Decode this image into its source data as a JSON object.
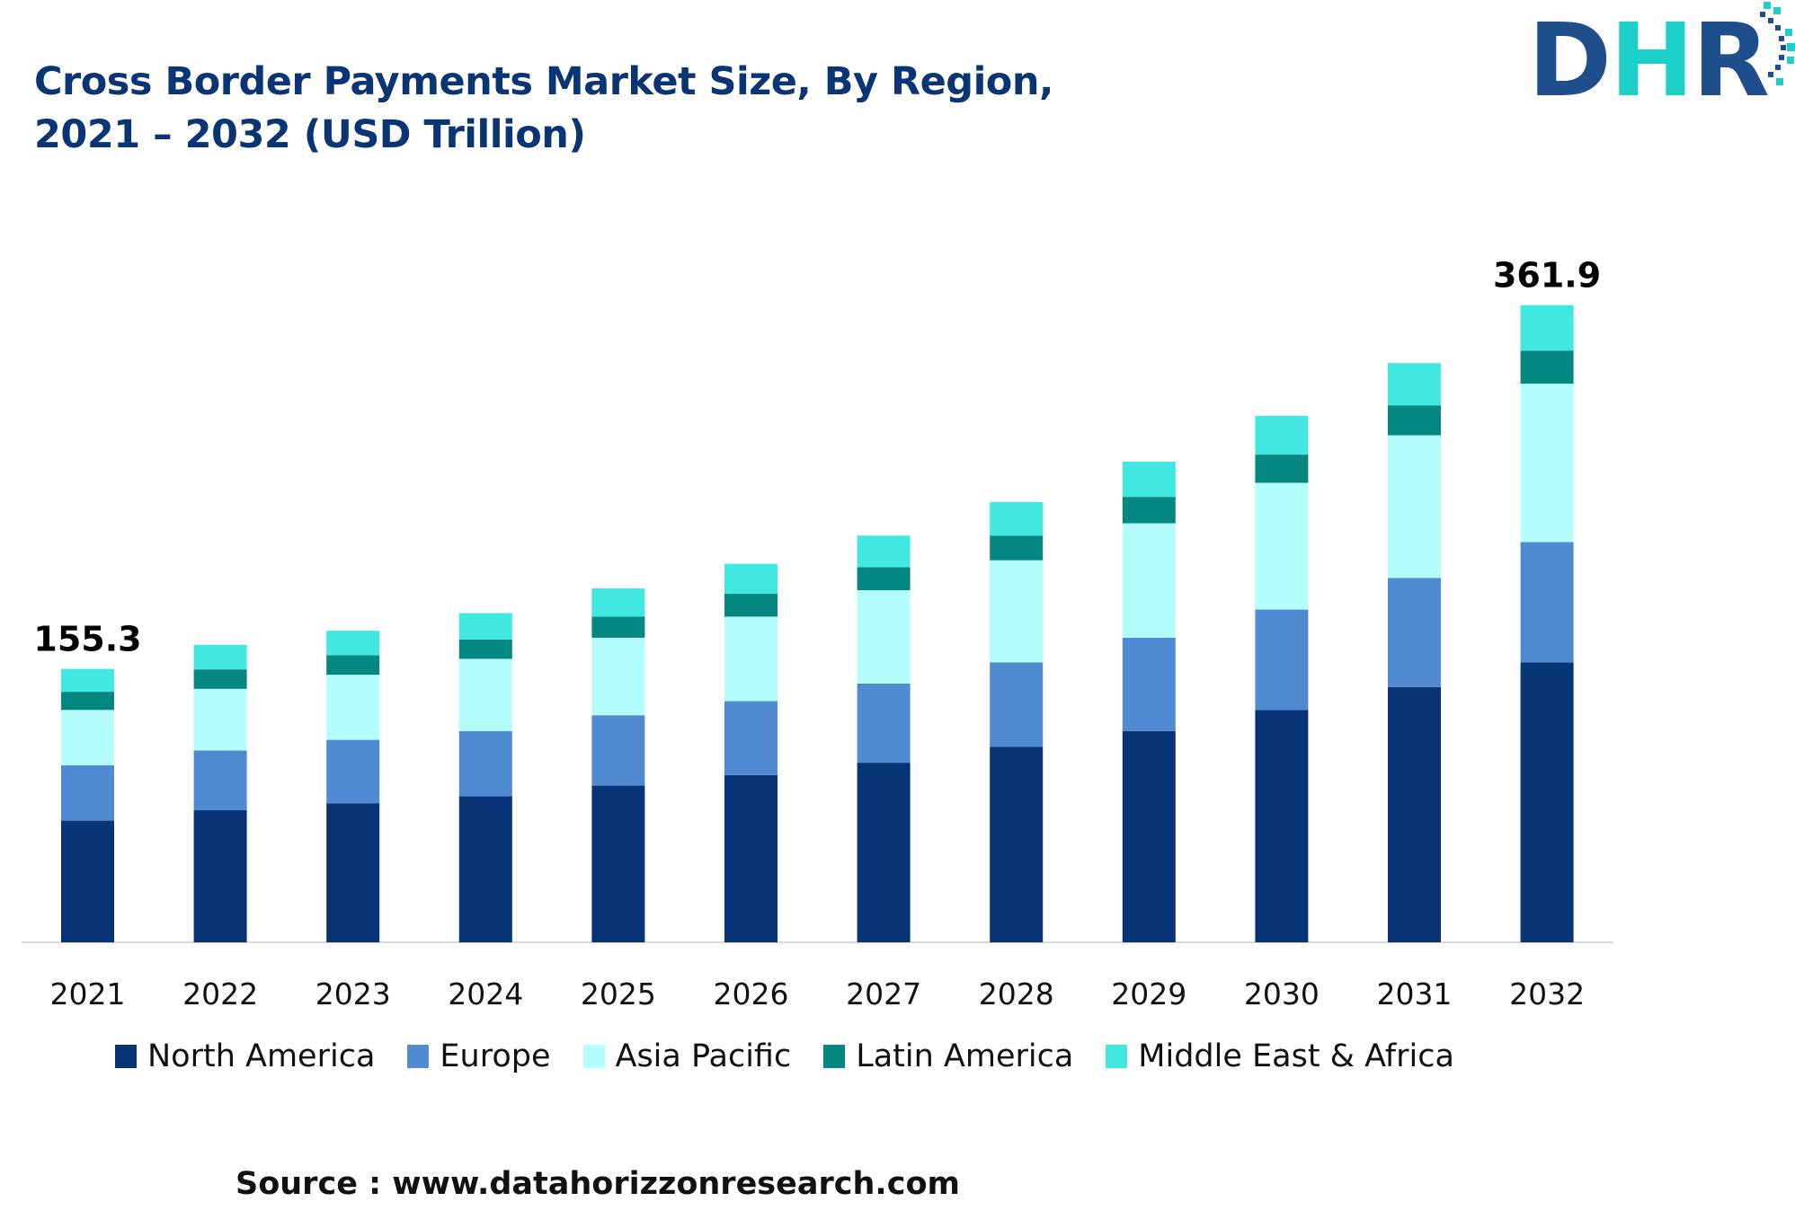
{
  "header": {
    "title_line1": "Cross Border Payments Market Size, By Region,",
    "title_line2": "2021 – 2032 (USD Trillion)",
    "logo_text": "DHR"
  },
  "footer": {
    "source": "Source : www.datahorizzonresearch.com"
  },
  "colors": {
    "title": "#0a3575",
    "north_america": "#073476",
    "europe": "#508ad3",
    "asia_pacific": "#b3fefc",
    "latin_america": "#048781",
    "middle_east_africa": "#40e8e1",
    "logo_dark": "#1f4e8c",
    "logo_teal": "#1ccfc9"
  },
  "chart_data": {
    "type": "bar",
    "stacked": true,
    "title": "Cross Border Payments Market Size, By Region, 2021 – 2032 (USD Trillion)",
    "xlabel": "",
    "ylabel": "USD Trillion",
    "ylim": [
      0,
      380
    ],
    "grid": false,
    "legend_position": "bottom",
    "categories": [
      "2021",
      "2022",
      "2023",
      "2024",
      "2025",
      "2026",
      "2027",
      "2028",
      "2029",
      "2030",
      "2031",
      "2032"
    ],
    "series": [
      {
        "name": "North America",
        "color": "#073476",
        "values": [
          69.1,
          75,
          79,
          83,
          89,
          95,
          102,
          111,
          120,
          132,
          145,
          159.0
        ]
      },
      {
        "name": "Europe",
        "color": "#508ad3",
        "values": [
          31.5,
          34,
          36,
          37,
          40,
          42,
          45,
          48,
          53,
          57,
          62,
          68.3
        ]
      },
      {
        "name": "Asia Pacific",
        "color": "#b3fefc",
        "values": [
          31.4,
          35,
          37,
          41,
          44,
          48,
          53,
          58,
          65,
          72,
          81,
          90.0
        ]
      },
      {
        "name": "Latin America",
        "color": "#048781",
        "values": [
          10.3,
          11,
          11,
          11,
          12,
          13,
          13,
          14,
          15,
          16,
          17,
          18.7
        ]
      },
      {
        "name": "Middle East & Africa",
        "color": "#40e8e1",
        "values": [
          13.0,
          14,
          14,
          15,
          16,
          17,
          18,
          19,
          20,
          22,
          24,
          25.9
        ]
      }
    ],
    "annotations": [
      {
        "category": "2021",
        "text": "155.3"
      },
      {
        "category": "2032",
        "text": "361.9"
      }
    ]
  }
}
